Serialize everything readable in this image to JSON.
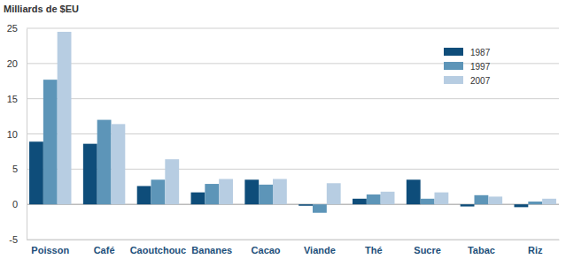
{
  "chart_data": {
    "type": "bar",
    "title": "Milliards de $EU",
    "categories": [
      "Poisson",
      "Café",
      "Caoutchouc",
      "Bananes",
      "Cacao",
      "Viande",
      "Thé",
      "Sucre",
      "Tabac",
      "Riz"
    ],
    "series": [
      {
        "name": "1987",
        "color": "#0e4d7a",
        "values": [
          8.9,
          8.6,
          2.6,
          1.7,
          3.5,
          -0.2,
          0.8,
          3.5,
          -0.3,
          -0.4
        ]
      },
      {
        "name": "1997",
        "color": "#5d95b8",
        "values": [
          17.7,
          12.0,
          3.5,
          2.9,
          2.8,
          -1.2,
          1.4,
          0.8,
          1.3,
          0.4
        ]
      },
      {
        "name": "2007",
        "color": "#b7cde2",
        "values": [
          24.5,
          11.4,
          6.4,
          3.6,
          3.6,
          3.0,
          1.8,
          1.7,
          1.1,
          0.8
        ]
      }
    ],
    "ylim": [
      -5,
      25
    ],
    "yticks": [
      -5,
      0,
      5,
      10,
      15,
      20,
      25
    ],
    "grid": true,
    "legend": "upper right"
  }
}
